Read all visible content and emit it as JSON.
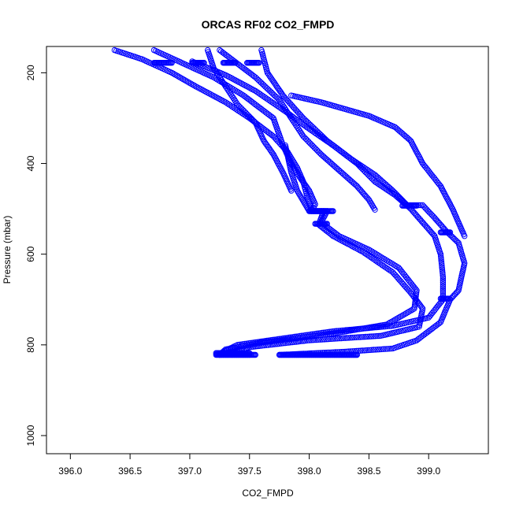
{
  "chart_data": {
    "type": "scatter",
    "title": "ORCAS RF02 CO2_FMPD",
    "xlabel": "CO2_FMPD",
    "ylabel": "Pressure (mbar)",
    "xlim": [
      395.8,
      399.5
    ],
    "ylim": [
      1040,
      142
    ],
    "y_reversed": true,
    "x_ticks": [
      396.0,
      396.5,
      397.0,
      397.5,
      398.0,
      398.5,
      399.0
    ],
    "x_tick_labels": [
      "396.0",
      "396.5",
      "397.0",
      "397.5",
      "398.0",
      "398.5",
      "399.0"
    ],
    "y_ticks": [
      200,
      400,
      600,
      800,
      1000
    ],
    "y_tick_labels": [
      "200",
      "400",
      "600",
      "800",
      "1000"
    ],
    "grid": false,
    "marker": "open-circle",
    "color": "#0000ff",
    "series": [
      {
        "points": [
          [
            396.37,
            150
          ],
          [
            396.6,
            170
          ],
          [
            396.85,
            200
          ],
          [
            397.05,
            230
          ],
          [
            397.3,
            265
          ],
          [
            397.5,
            300
          ],
          [
            397.7,
            340
          ],
          [
            397.82,
            375
          ],
          [
            397.9,
            410
          ],
          [
            397.95,
            440
          ],
          [
            397.98,
            470
          ],
          [
            398.02,
            505
          ],
          [
            398.15,
            505
          ],
          [
            398.1,
            530
          ],
          [
            398.25,
            560
          ],
          [
            398.5,
            590
          ],
          [
            398.75,
            630
          ],
          [
            398.9,
            680
          ],
          [
            398.88,
            720
          ],
          [
            398.65,
            755
          ],
          [
            398.2,
            775
          ],
          [
            397.6,
            795
          ],
          [
            397.3,
            810
          ],
          [
            397.25,
            822
          ],
          [
            397.5,
            822
          ]
        ]
      },
      {
        "points": [
          [
            396.7,
            150
          ],
          [
            396.95,
            180
          ],
          [
            397.2,
            210
          ],
          [
            397.45,
            250
          ],
          [
            397.7,
            300
          ],
          [
            397.78,
            360
          ],
          [
            397.85,
            400
          ],
          [
            397.92,
            430
          ],
          [
            398.0,
            460
          ],
          [
            398.05,
            490
          ],
          [
            398.02,
            505
          ],
          [
            398.15,
            505
          ]
        ]
      },
      {
        "points": [
          [
            397.25,
            150
          ],
          [
            397.4,
            180
          ],
          [
            397.55,
            210
          ],
          [
            397.75,
            260
          ],
          [
            397.85,
            300
          ],
          [
            397.95,
            340
          ],
          [
            398.1,
            380
          ],
          [
            398.25,
            415
          ],
          [
            398.4,
            450
          ],
          [
            398.5,
            480
          ],
          [
            398.55,
            502
          ]
        ]
      },
      {
        "points": [
          [
            397.6,
            150
          ],
          [
            397.65,
            200
          ],
          [
            397.78,
            250
          ],
          [
            397.95,
            300
          ],
          [
            398.15,
            350
          ],
          [
            398.35,
            390
          ],
          [
            398.55,
            425
          ],
          [
            398.7,
            460
          ],
          [
            398.82,
            492
          ],
          [
            398.95,
            492
          ],
          [
            399.05,
            520
          ],
          [
            399.15,
            550
          ],
          [
            399.25,
            575
          ],
          [
            399.3,
            620
          ],
          [
            399.25,
            680
          ],
          [
            399.18,
            700
          ],
          [
            399.1,
            750
          ],
          [
            398.9,
            790
          ],
          [
            398.7,
            808
          ],
          [
            398.3,
            815
          ],
          [
            397.75,
            822
          ],
          [
            398.4,
            822
          ]
        ]
      },
      {
        "points": [
          [
            397.02,
            175
          ],
          [
            397.3,
            205
          ],
          [
            397.55,
            240
          ],
          [
            397.8,
            285
          ],
          [
            397.98,
            320
          ],
          [
            398.2,
            360
          ],
          [
            398.4,
            400
          ],
          [
            398.55,
            440
          ],
          [
            398.72,
            470
          ],
          [
            398.85,
            500
          ],
          [
            398.95,
            530
          ],
          [
            399.05,
            560
          ],
          [
            399.1,
            600
          ],
          [
            399.12,
            650
          ],
          [
            399.12,
            700
          ],
          [
            399.0,
            740
          ],
          [
            398.7,
            758
          ],
          [
            398.2,
            770
          ],
          [
            397.8,
            785
          ],
          [
            397.4,
            800
          ],
          [
            397.28,
            815
          ],
          [
            397.25,
            822
          ]
        ]
      },
      {
        "points": [
          [
            397.85,
            250
          ],
          [
            398.1,
            265
          ],
          [
            398.3,
            280
          ],
          [
            398.5,
            295
          ],
          [
            398.72,
            320
          ],
          [
            398.85,
            350
          ],
          [
            398.95,
            400
          ],
          [
            399.1,
            450
          ],
          [
            399.2,
            500
          ],
          [
            399.25,
            530
          ],
          [
            399.3,
            560
          ]
        ]
      },
      {
        "points": [
          [
            397.8,
            360
          ],
          [
            397.85,
            420
          ],
          [
            397.9,
            460
          ],
          [
            398.0,
            505
          ],
          [
            398.12,
            505
          ],
          [
            398.08,
            535
          ],
          [
            398.2,
            560
          ],
          [
            398.45,
            595
          ],
          [
            398.7,
            640
          ],
          [
            398.85,
            685
          ],
          [
            398.95,
            720
          ],
          [
            398.92,
            760
          ],
          [
            398.6,
            780
          ],
          [
            398.0,
            790
          ],
          [
            397.5,
            805
          ],
          [
            397.3,
            820
          ]
        ]
      },
      {
        "points": [
          [
            397.15,
            150
          ],
          [
            397.2,
            190
          ],
          [
            397.3,
            230
          ],
          [
            397.4,
            270
          ],
          [
            397.55,
            310
          ],
          [
            397.62,
            350
          ],
          [
            397.7,
            380
          ],
          [
            397.78,
            420
          ],
          [
            397.85,
            460
          ]
        ]
      }
    ],
    "flat_segments": [
      {
        "x": [
          396.7,
          396.85
        ],
        "y": 178
      },
      {
        "x": [
          397.02,
          397.12
        ],
        "y": 178
      },
      {
        "x": [
          397.28,
          397.38
        ],
        "y": 178
      },
      {
        "x": [
          397.48,
          397.58
        ],
        "y": 178
      },
      {
        "x": [
          398.0,
          398.2
        ],
        "y": 505
      },
      {
        "x": [
          398.05,
          398.15
        ],
        "y": 533
      },
      {
        "x": [
          398.78,
          398.9
        ],
        "y": 493
      },
      {
        "x": [
          399.1,
          399.18
        ],
        "y": 552
      },
      {
        "x": [
          399.1,
          399.17
        ],
        "y": 698
      },
      {
        "x": [
          397.22,
          397.5
        ],
        "y": 818
      },
      {
        "x": [
          397.22,
          397.55
        ],
        "y": 822
      },
      {
        "x": [
          397.75,
          398.4
        ],
        "y": 822
      }
    ]
  }
}
